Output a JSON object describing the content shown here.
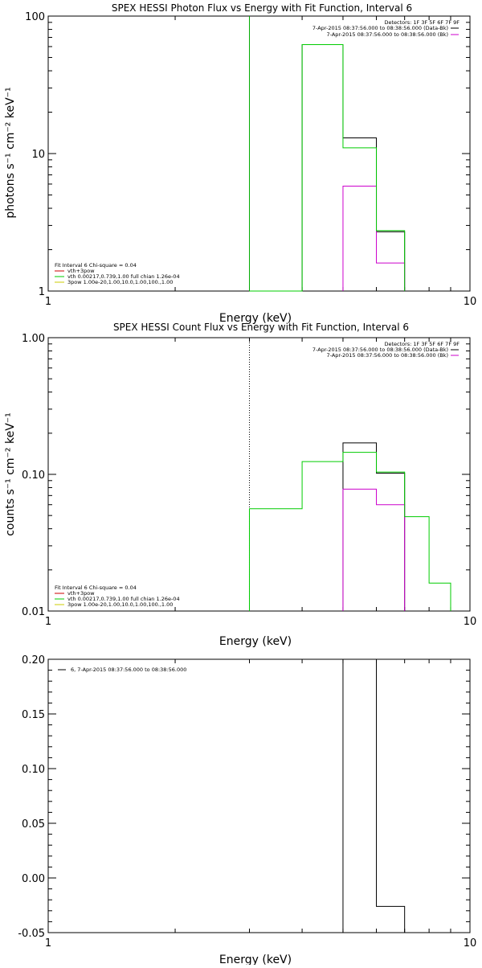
{
  "chart_data": [
    {
      "type": "line",
      "title": "SPEX HESSI Photon Flux vs Energy with Fit Function, Interval 6",
      "xlabel": "Energy (keV)",
      "ylabel": "photons s⁻¹ cm⁻² keV⁻¹",
      "xscale": "log",
      "yscale": "log",
      "xlim": [
        1,
        10
      ],
      "ylim": [
        1,
        100
      ],
      "xticks": [
        "1",
        "10"
      ],
      "yticks": [
        "1",
        "10",
        "100"
      ],
      "ytick_values": [
        1,
        10,
        100
      ],
      "grid": false,
      "legend_placement": "bottom-left",
      "info_header": "Detectors: 1F 3F 5F 6F 7F 9F",
      "info_lines": [
        {
          "text": "7-Apr-2015 08:37:56.000 to 08:38:56.000 (Data-Bk)",
          "color": "#000000"
        },
        {
          "text": "7-Apr-2015 08:37:56.000 to 08:38:56.000 (Bk)",
          "color": "#cc00cc"
        }
      ],
      "fit_header": "Fit Interval 6   Chi-square = 0.04",
      "fit_lines": [
        {
          "text": "vth+3pow",
          "color": "#cc0000"
        },
        {
          "text": "vth 0.00217,0.739,1.00  full chian 1.26e-04",
          "color": "#00cc00"
        },
        {
          "text": "3pow 1.00e-20,1.00,10.0,1.00,100.,1.00",
          "color": "#cccc00"
        }
      ],
      "vline": {
        "x": 3.0,
        "color": "#00aa00",
        "style": "solid"
      },
      "series": [
        {
          "name": "Data-Bk",
          "color": "#000000",
          "points": [
            [
              3.0,
              1
            ],
            [
              4.0,
              62
            ],
            [
              5.0,
              13
            ],
            [
              6.0,
              2.7
            ],
            [
              7.0,
              1
            ]
          ]
        },
        {
          "name": "Bk",
          "color": "#cc00cc",
          "points": [
            [
              5.0,
              5.8
            ],
            [
              6.0,
              1.6
            ],
            [
              7.0,
              1
            ]
          ]
        },
        {
          "name": "vth+3pow",
          "color": "#00cc00",
          "points": [
            [
              3.0,
              1
            ],
            [
              4.0,
              62
            ],
            [
              5.0,
              11
            ],
            [
              6.0,
              2.75
            ],
            [
              7.0,
              1
            ]
          ]
        }
      ]
    },
    {
      "type": "line",
      "title": "SPEX HESSI Count Flux vs Energy with Fit Function, Interval 6",
      "xlabel": "Energy (keV)",
      "ylabel": "counts s⁻¹ cm⁻² keV⁻¹",
      "xscale": "log",
      "yscale": "log",
      "xlim": [
        1,
        10
      ],
      "ylim": [
        0.01,
        1
      ],
      "xticks": [
        "1",
        "10"
      ],
      "yticks": [
        "0.01",
        "0.10",
        "1.00"
      ],
      "ytick_values": [
        0.01,
        0.1,
        1
      ],
      "grid": false,
      "legend_placement": "bottom-left",
      "info_header": "Detectors: 1F 3F 5F 6F 7F 9F",
      "info_lines": [
        {
          "text": "7-Apr-2015 08:37:56.000 to 08:38:56.000 (Data-Bk)",
          "color": "#000000"
        },
        {
          "text": "7-Apr-2015 08:37:56.000 to 08:38:56.000 (Bk)",
          "color": "#cc00cc"
        }
      ],
      "fit_header": "Fit Interval 6   Chi-square = 0.04",
      "fit_lines": [
        {
          "text": "vth+3pow",
          "color": "#cc0000"
        },
        {
          "text": "vth 0.00217,0.739,1.00  full chian 1.26e-04",
          "color": "#00cc00"
        },
        {
          "text": "3pow 1.00e-20,1.00,10.0,1.00,100.,1.00",
          "color": "#cccc00"
        }
      ],
      "vline": {
        "x": 3.0,
        "color": "#000000",
        "style": "dotted"
      },
      "series": [
        {
          "name": "Data-Bk",
          "color": "#000000",
          "points": [
            [
              5.0,
              0.01
            ],
            [
              5.0,
              0.17
            ],
            [
              6.0,
              0.102
            ],
            [
              7.0,
              0.01
            ]
          ]
        },
        {
          "name": "Bk",
          "color": "#cc00cc",
          "points": [
            [
              5.0,
              0.078
            ],
            [
              6.0,
              0.06
            ],
            [
              7.0,
              0.01
            ]
          ]
        },
        {
          "name": "vth+3pow",
          "color": "#00cc00",
          "points": [
            [
              3.0,
              0.01
            ],
            [
              3.0,
              0.056
            ],
            [
              4.0,
              0.124
            ],
            [
              5.0,
              0.145
            ],
            [
              6.0,
              0.104
            ],
            [
              7.0,
              0.049
            ],
            [
              8.0,
              0.016
            ],
            [
              9.0,
              0.01
            ]
          ]
        }
      ]
    },
    {
      "type": "line",
      "title": "",
      "xlabel": "Energy (keV)",
      "ylabel": "",
      "xscale": "log",
      "yscale": "linear",
      "xlim": [
        1,
        10
      ],
      "ylim": [
        -0.05,
        0.2
      ],
      "xticks": [
        "1",
        "10"
      ],
      "yticks": [
        "-0.05",
        "0.00",
        "0.05",
        "0.10",
        "0.15",
        "0.20"
      ],
      "ytick_values": [
        -0.05,
        0,
        0.05,
        0.1,
        0.15,
        0.2
      ],
      "grid": false,
      "legend_placement": "top-left",
      "legend_line": "6,  7-Apr-2015 08:37:56.000 to 08:38:56.000",
      "series": [
        {
          "name": "6",
          "color": "#000000",
          "points": [
            [
              5.0,
              -0.05
            ],
            [
              5.0,
              0.2
            ],
            [
              6.0,
              -0.026
            ],
            [
              7.0,
              -0.05
            ]
          ]
        }
      ]
    }
  ]
}
